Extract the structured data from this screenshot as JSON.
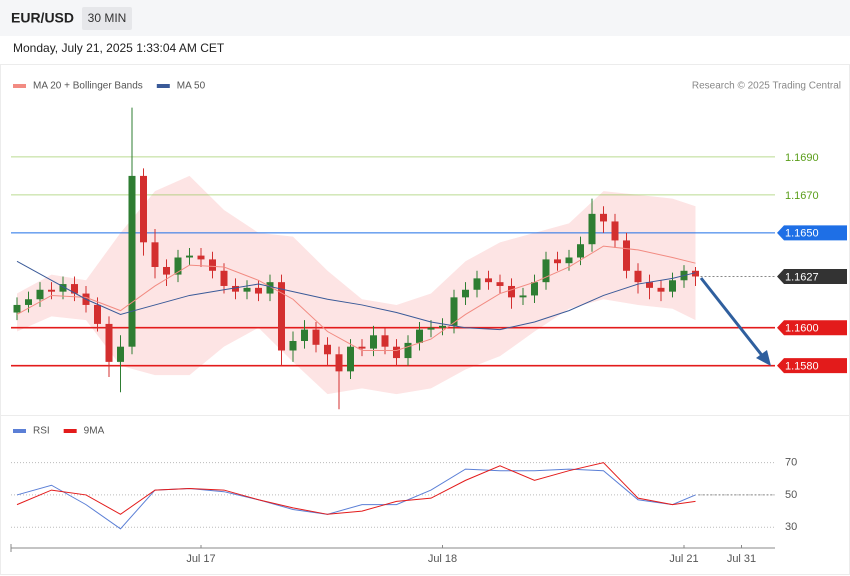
{
  "header": {
    "symbol": "EUR/USD",
    "timeframe": "30 MIN",
    "date": "Monday, July 21, 2025 1:33:04 AM CET"
  },
  "chart_data": {
    "type": "candlestick",
    "source": "Research © 2025 Trading Central",
    "categories": [
      null,
      null,
      null,
      null,
      null,
      null,
      null,
      null,
      null,
      null,
      null,
      null,
      null,
      null,
      null,
      null,
      "Jul 17",
      null,
      null,
      null,
      null,
      null,
      null,
      null,
      null,
      null,
      null,
      null,
      null,
      null,
      null,
      null,
      null,
      null,
      null,
      null,
      null,
      "Jul 18",
      null,
      null,
      null,
      null,
      null,
      null,
      null,
      null,
      null,
      null,
      null,
      null,
      null,
      null,
      null,
      null,
      null,
      null,
      null,
      null,
      "Jul 21",
      null,
      null,
      null,
      null,
      "Jul 31"
    ],
    "open": [
      1.1608,
      1.1612,
      1.1615,
      1.162,
      1.1619,
      1.1623,
      1.1618,
      1.1612,
      1.1602,
      1.1582,
      1.159,
      1.168,
      1.1645,
      1.1632,
      1.1628,
      1.1637,
      1.1638,
      1.1636,
      1.163,
      1.1622,
      1.1619,
      1.1621,
      1.1618,
      1.1624,
      1.1588,
      1.1593,
      1.1599,
      1.1591,
      1.1586,
      1.1577,
      1.159,
      1.1589,
      1.1596,
      1.159,
      1.1584,
      1.1592,
      1.1599,
      1.16,
      1.1601,
      1.1616,
      1.162,
      1.1626,
      1.1624,
      1.1622,
      1.1616,
      1.1617,
      1.1624,
      1.1636,
      1.1634,
      1.1637,
      1.1644,
      1.166,
      1.1656,
      1.1646,
      1.163,
      1.1624,
      1.1621,
      1.1619,
      1.1625,
      1.163,
      null,
      null,
      null,
      null
    ],
    "high": [
      1.1616,
      1.1619,
      1.1624,
      1.1624,
      1.1627,
      1.1627,
      1.1622,
      1.1616,
      1.1606,
      1.1596,
      1.1716,
      1.1684,
      1.1652,
      1.1636,
      1.1641,
      1.1642,
      1.1642,
      1.164,
      1.1634,
      1.1626,
      1.1625,
      1.1625,
      1.1628,
      1.1628,
      1.1598,
      1.1604,
      1.1603,
      1.1595,
      1.159,
      1.1594,
      1.1594,
      1.1601,
      1.16,
      1.1594,
      1.1596,
      1.1603,
      1.1604,
      1.1605,
      1.162,
      1.1624,
      1.163,
      1.163,
      1.1628,
      1.1626,
      1.1621,
      1.1628,
      1.164,
      1.164,
      1.1641,
      1.1648,
      1.1668,
      1.1664,
      1.166,
      1.165,
      1.1634,
      1.1628,
      1.1625,
      1.1629,
      1.1633,
      1.1632,
      null,
      null,
      null,
      null
    ],
    "low": [
      1.1604,
      1.1608,
      1.1611,
      1.1615,
      1.1615,
      1.1614,
      1.1608,
      1.1598,
      1.1574,
      1.1566,
      1.1586,
      1.1638,
      1.1626,
      1.1622,
      1.1624,
      1.1633,
      1.1632,
      1.1626,
      1.1618,
      1.1615,
      1.1615,
      1.1614,
      1.1614,
      1.158,
      1.1582,
      1.1589,
      1.1587,
      1.158,
      1.1557,
      1.1573,
      1.1585,
      1.1585,
      1.1586,
      1.158,
      1.158,
      1.1588,
      1.1595,
      1.1596,
      1.1597,
      1.1612,
      1.1616,
      1.162,
      1.1618,
      1.161,
      1.1612,
      1.1613,
      1.162,
      1.163,
      1.163,
      1.1633,
      1.164,
      1.165,
      1.1642,
      1.1626,
      1.1618,
      1.1615,
      1.1614,
      1.1616,
      1.1621,
      1.1622,
      null,
      null,
      null,
      null
    ],
    "close": [
      1.1612,
      1.1615,
      1.162,
      1.1619,
      1.1623,
      1.1618,
      1.1612,
      1.1602,
      1.1582,
      1.159,
      1.168,
      1.1645,
      1.1632,
      1.1628,
      1.1637,
      1.1638,
      1.1636,
      1.163,
      1.1622,
      1.1619,
      1.1621,
      1.1618,
      1.1624,
      1.1588,
      1.1593,
      1.1599,
      1.1591,
      1.1586,
      1.1577,
      1.159,
      1.1589,
      1.1596,
      1.159,
      1.1584,
      1.1592,
      1.1599,
      1.16,
      1.1601,
      1.1616,
      1.162,
      1.1626,
      1.1624,
      1.1622,
      1.1616,
      1.1617,
      1.1624,
      1.1636,
      1.1634,
      1.1637,
      1.1644,
      1.166,
      1.1656,
      1.1646,
      1.163,
      1.1624,
      1.1621,
      1.1619,
      1.1625,
      1.163,
      1.1627,
      null,
      null,
      null,
      null
    ],
    "up_color": "#2e7d32",
    "down_color": "#d32f2f",
    "series": [
      {
        "name": "MA 20 + Bollinger Bands",
        "color": "#f28b82",
        "band_color": "#fde4e4",
        "x": [
          0,
          3,
          6,
          9,
          12,
          15,
          18,
          21,
          24,
          27,
          30,
          33,
          36,
          39,
          42,
          45,
          48,
          51,
          54,
          57,
          59
        ],
        "values": [
          1.1607,
          1.1617,
          1.1616,
          1.1609,
          1.1622,
          1.1633,
          1.1632,
          1.1625,
          1.1615,
          1.1598,
          1.1588,
          1.1588,
          1.1594,
          1.1607,
          1.1618,
          1.1624,
          1.1632,
          1.1643,
          1.1641,
          1.1637,
          1.1634
        ],
        "upper": [
          1.1618,
          1.1628,
          1.1625,
          1.165,
          1.1672,
          1.168,
          1.1662,
          1.165,
          1.1648,
          1.163,
          1.1615,
          1.1612,
          1.1618,
          1.1635,
          1.1645,
          1.165,
          1.1655,
          1.1672,
          1.167,
          1.1668,
          1.1664
        ],
        "lower": [
          1.1598,
          1.1606,
          1.1604,
          1.158,
          1.1575,
          1.1575,
          1.159,
          1.16,
          1.1582,
          1.1565,
          1.1568,
          1.1565,
          1.1568,
          1.1578,
          1.1585,
          1.1598,
          1.161,
          1.1615,
          1.1612,
          1.161,
          1.1604
        ]
      },
      {
        "name": "MA 50",
        "color": "#3a5a98",
        "x": [
          0,
          3,
          6,
          9,
          12,
          15,
          18,
          21,
          24,
          27,
          30,
          33,
          36,
          39,
          42,
          45,
          48,
          51,
          54,
          57,
          59
        ],
        "values": [
          1.1635,
          1.1625,
          1.1615,
          1.1607,
          1.1612,
          1.1617,
          1.162,
          1.1623,
          1.1619,
          1.1615,
          1.1612,
          1.1608,
          1.1603,
          1.16,
          1.1599,
          1.1603,
          1.1609,
          1.1617,
          1.1623,
          1.1626,
          1.1629
        ]
      }
    ],
    "ylim": [
      1.1554,
      1.172
    ],
    "levels": [
      {
        "value": 1.169,
        "label": "1.1690",
        "color": "#8bc34a",
        "style": "text"
      },
      {
        "value": 1.167,
        "label": "1.1670",
        "color": "#8bc34a",
        "style": "text"
      },
      {
        "value": 1.165,
        "label": "1.1650",
        "color": "#1e6fe6",
        "style": "box"
      },
      {
        "value": 1.1627,
        "label": "1.1627",
        "color": "#333333",
        "style": "current"
      },
      {
        "value": 1.16,
        "label": "1.1600",
        "color": "#e31b1b",
        "style": "box"
      },
      {
        "value": 1.158,
        "label": "1.1580",
        "color": "#e31b1b",
        "style": "box"
      }
    ],
    "rsi": {
      "type": "line",
      "series": [
        {
          "name": "RSI",
          "color": "#5b7fd6",
          "x": [
            0,
            3,
            6,
            9,
            12,
            15,
            18,
            21,
            24,
            27,
            30,
            33,
            36,
            39,
            42,
            45,
            48,
            51,
            54,
            57,
            59
          ],
          "values": [
            50,
            56,
            44,
            29,
            53,
            54,
            52,
            47,
            41,
            38,
            44,
            44,
            53,
            66,
            65,
            65,
            66,
            65,
            47,
            44,
            50
          ]
        },
        {
          "name": "9MA",
          "color": "#e31b1b",
          "x": [
            0,
            3,
            6,
            9,
            12,
            15,
            18,
            21,
            24,
            27,
            30,
            33,
            36,
            39,
            42,
            45,
            48,
            51,
            54,
            57,
            59
          ],
          "values": [
            44,
            53,
            50,
            38,
            53,
            54,
            53,
            47,
            42,
            38,
            40,
            46,
            48,
            59,
            68,
            59,
            65,
            70,
            48,
            44,
            46
          ]
        }
      ],
      "ylim": [
        19,
        84
      ],
      "yticks": [
        70,
        50,
        30
      ]
    }
  }
}
